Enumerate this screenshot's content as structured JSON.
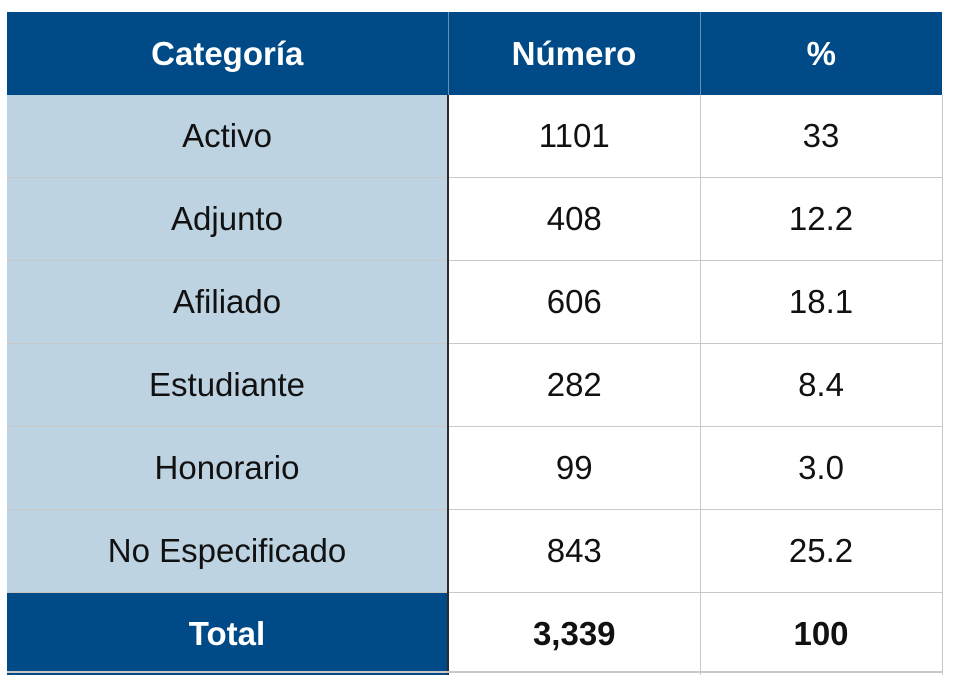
{
  "table": {
    "headers": [
      "Categoría",
      "Número",
      "%"
    ],
    "rows": [
      {
        "categoria": "Activo",
        "numero": "1101",
        "pct": "33"
      },
      {
        "categoria": "Adjunto",
        "numero": "408",
        "pct": "12.2"
      },
      {
        "categoria": "Afiliado",
        "numero": "606",
        "pct": "18.1"
      },
      {
        "categoria": "Estudiante",
        "numero": "282",
        "pct": "8.4"
      },
      {
        "categoria": "Honorario",
        "numero": "99",
        "pct": "3.0"
      },
      {
        "categoria": "No Especificado",
        "numero": "843",
        "pct": "25.2"
      }
    ],
    "total": {
      "label": "Total",
      "numero": "3,339",
      "pct": "100"
    }
  },
  "colors": {
    "header_bg": "#004b87",
    "category_bg": "#bdd3e2",
    "header_text": "#ffffff"
  }
}
